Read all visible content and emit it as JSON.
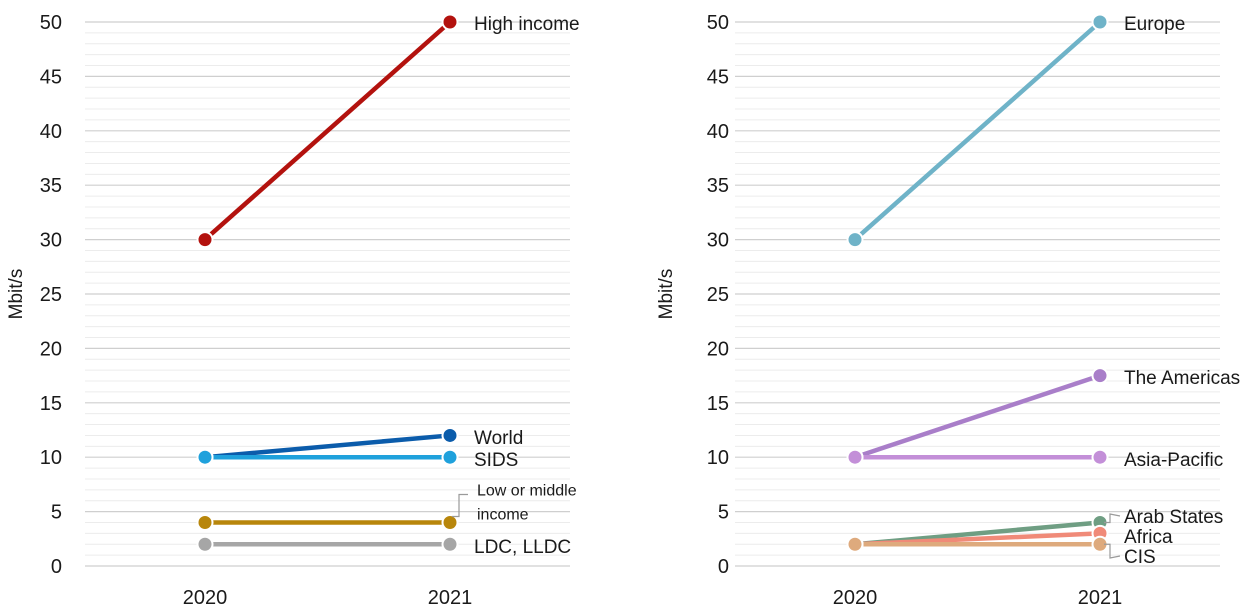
{
  "chart_data": [
    {
      "type": "line",
      "ylabel": "Mbit/s",
      "x": [
        "2020",
        "2021"
      ],
      "ylim": [
        0,
        50
      ],
      "yticks": [
        0,
        5,
        10,
        15,
        20,
        25,
        30,
        35,
        40,
        45,
        50
      ],
      "grid": true,
      "series": [
        {
          "name": "High income",
          "values": [
            30,
            50
          ],
          "color": "#b3120e"
        },
        {
          "name": "World",
          "values": [
            10,
            12
          ],
          "color": "#0b5cab"
        },
        {
          "name": "SIDS",
          "values": [
            10,
            10
          ],
          "color": "#1fa1dc"
        },
        {
          "name": "Low or middle income",
          "values": [
            4,
            4
          ],
          "color": "#b8860b"
        },
        {
          "name": "LDC, LLDC",
          "values": [
            2,
            2
          ],
          "color": "#a6a6a6"
        }
      ]
    },
    {
      "type": "line",
      "ylabel": "Mbit/s",
      "x": [
        "2020",
        "2021"
      ],
      "ylim": [
        0,
        50
      ],
      "yticks": [
        0,
        5,
        10,
        15,
        20,
        25,
        30,
        35,
        40,
        45,
        50
      ],
      "grid": true,
      "series": [
        {
          "name": "Europe",
          "values": [
            30,
            50
          ],
          "color": "#6fb3c8"
        },
        {
          "name": "The Americas",
          "values": [
            10,
            17.5
          ],
          "color": "#a97ec9"
        },
        {
          "name": "Asia-Pacific",
          "values": [
            10,
            10
          ],
          "color": "#c38fd8"
        },
        {
          "name": "Arab States",
          "values": [
            2,
            4
          ],
          "color": "#6f9e83"
        },
        {
          "name": "Africa",
          "values": [
            2,
            3
          ],
          "color": "#f08a78"
        },
        {
          "name": "CIS",
          "values": [
            2,
            2
          ],
          "color": "#deaa7d"
        }
      ]
    }
  ]
}
